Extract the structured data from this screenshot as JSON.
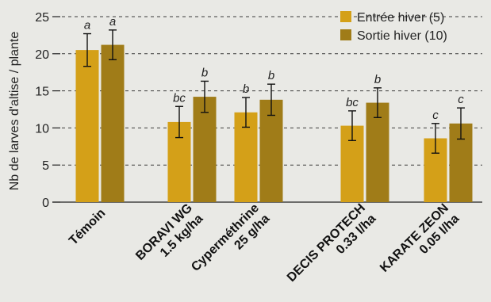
{
  "chart_data": {
    "type": "bar",
    "ylabel": "Nb de larves d'altise / plante",
    "ylim": [
      0,
      25
    ],
    "yticks": [
      0,
      5,
      10,
      15,
      20,
      25
    ],
    "grid": true,
    "legend_position": "top-right",
    "categories": [
      [
        "Témoin"
      ],
      [
        "BORAVI WG",
        "1.5 kg/ha"
      ],
      [
        "Cyperméthrine",
        "25 g/ha"
      ],
      [
        "DECIS PROTECH",
        "0.33 l/ha"
      ],
      [
        "KARATE ZEON",
        "0.05 l/ha"
      ]
    ],
    "series": [
      {
        "name": "Entrée hiver (5)",
        "color": "#d4a018",
        "values": [
          20.5,
          10.8,
          12.1,
          10.3,
          8.6
        ],
        "errors": [
          2.2,
          2.1,
          2.0,
          2.0,
          2.0
        ],
        "letters": [
          "a",
          "bc",
          "b",
          "bc",
          "c"
        ]
      },
      {
        "name": "Sortie hiver (10)",
        "color": "#a07c18",
        "values": [
          21.2,
          14.2,
          13.8,
          13.4,
          10.6
        ],
        "errors": [
          2.0,
          2.1,
          2.1,
          2.0,
          2.1
        ],
        "letters": [
          "a",
          "b",
          "b",
          "b",
          "c"
        ]
      }
    ]
  }
}
